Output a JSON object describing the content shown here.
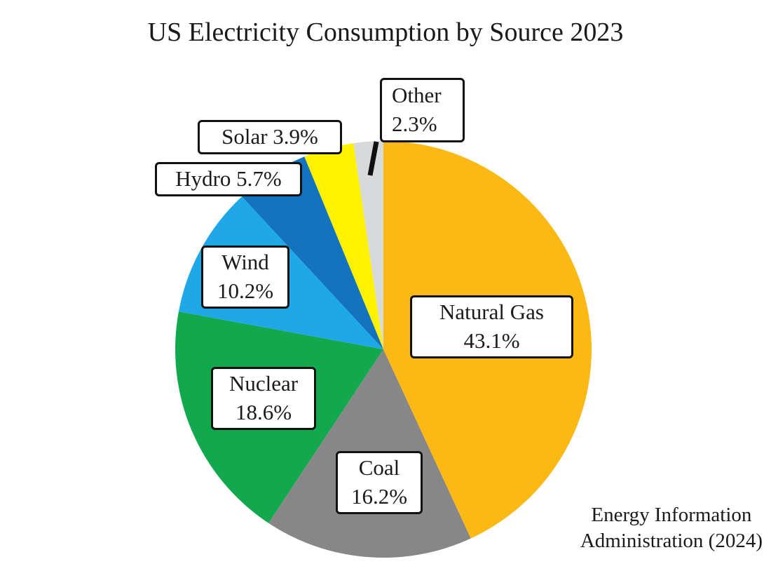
{
  "title": "US Electricity Consumption by Source 2023",
  "chart_data": {
    "type": "pie",
    "title": "US Electricity Consumption by Source 2023",
    "direction": "clockwise",
    "start_angle_deg": 0,
    "slices": [
      {
        "label": "Natural Gas",
        "value": 43.1,
        "color": "#FCB813"
      },
      {
        "label": "Coal",
        "value": 16.2,
        "color": "#878787"
      },
      {
        "label": "Nuclear",
        "value": 18.6,
        "color": "#12A84E"
      },
      {
        "label": "Wind",
        "value": 10.2,
        "color": "#1FA8E8"
      },
      {
        "label": "Hydro",
        "value": 5.7,
        "color": "#1473BE"
      },
      {
        "label": "Solar",
        "value": 3.9,
        "color": "#FFF200"
      },
      {
        "label": "Other",
        "value": 2.3,
        "color": "#D8D9DA"
      }
    ],
    "source": "Energy Information Administration (2024)"
  },
  "labels": {
    "natural_gas": {
      "line1": "Natural Gas",
      "line2": "43.1%"
    },
    "coal": {
      "line1": "Coal",
      "line2": "16.2%"
    },
    "nuclear": {
      "line1": "Nuclear",
      "line2": "18.6%"
    },
    "wind": {
      "line1": "Wind",
      "line2": "10.2%"
    },
    "hydro": {
      "text": "Hydro 5.7%"
    },
    "solar": {
      "text": "Solar 3.9%"
    },
    "other": {
      "line1": "Other",
      "line2": "2.3%"
    }
  },
  "attribution": {
    "line1": "Energy Information",
    "line2": "Administration (2024)"
  }
}
